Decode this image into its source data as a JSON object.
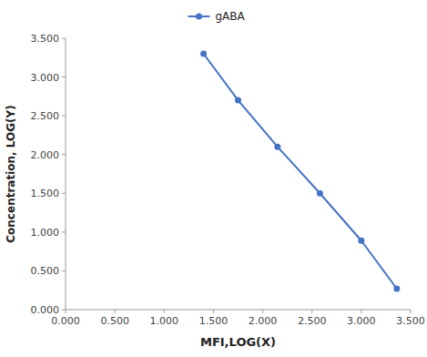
{
  "chart_data": {
    "type": "line",
    "xlabel": "MFI,LOG(X)",
    "ylabel": "Concentration, LOG(Y)",
    "x": [
      1.4,
      1.75,
      2.15,
      2.58,
      3.0,
      3.36
    ],
    "series": [
      {
        "name": "gABA",
        "color": "#4472C4",
        "marker": "circle",
        "values": [
          3.3,
          2.7,
          2.1,
          1.5,
          0.89,
          0.27
        ]
      }
    ],
    "xlim": [
      0.0,
      3.5
    ],
    "ylim": [
      0.0,
      3.5
    ],
    "xticks": [
      {
        "value": 0,
        "label": "0.000"
      },
      {
        "value": 0.5,
        "label": "0.500"
      },
      {
        "value": 1,
        "label": "1.000"
      },
      {
        "value": 1.5,
        "label": "1.500"
      },
      {
        "value": 2,
        "label": "2.000"
      },
      {
        "value": 2.5,
        "label": "2.500"
      },
      {
        "value": 3,
        "label": "3.000"
      },
      {
        "value": 3.5,
        "label": "3.500"
      }
    ],
    "yticks": [
      {
        "value": 0,
        "label": "0.000"
      },
      {
        "value": 0.5,
        "label": "0.500"
      },
      {
        "value": 1,
        "label": "1.000"
      },
      {
        "value": 1.5,
        "label": "1.500"
      },
      {
        "value": 2,
        "label": "2.000"
      },
      {
        "value": 2.5,
        "label": "2.500"
      },
      {
        "value": 3,
        "label": "3.000"
      },
      {
        "value": 3.5,
        "label": "3.500"
      }
    ],
    "grid": false,
    "legend": "top"
  }
}
